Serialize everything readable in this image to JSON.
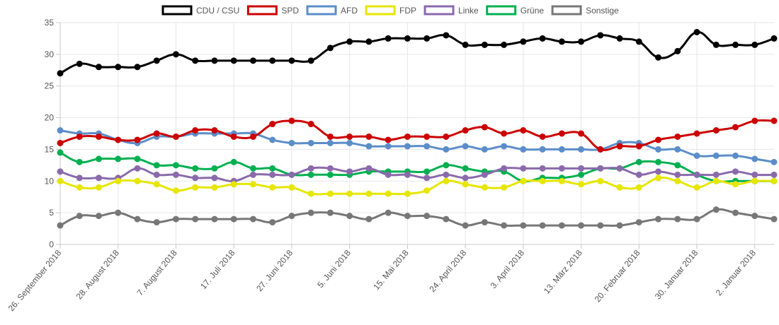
{
  "chart_data": {
    "type": "line",
    "title": "",
    "xlabel": "",
    "ylabel": "",
    "ylim": [
      0,
      35
    ],
    "yticks": [
      0,
      5,
      10,
      15,
      20,
      25,
      30,
      35
    ],
    "grid": true,
    "legend_position": "top-center",
    "x_tick_labels": [
      "26. September 2018",
      "28. August 2018",
      "7. August 2018",
      "17. Juli 2018",
      "27. Juni 2018",
      "5. Juni 2018",
      "15. Mai 2018",
      "24. April 2018",
      "3. April 2018",
      "13. März 2018",
      "20. Februar 2018",
      "30. Januar 2018",
      "2. Januar 2018"
    ],
    "num_points": 38,
    "series": [
      {
        "name": "CDU / CSU",
        "color": "#000000",
        "values": [
          27,
          28.5,
          28,
          28,
          28,
          29,
          30,
          29,
          29,
          29,
          29,
          29,
          29,
          29,
          31,
          32,
          32,
          32.5,
          32.5,
          32.5,
          33,
          31.5,
          31.5,
          31.5,
          32,
          32.5,
          32,
          32,
          33,
          32.5,
          32,
          29.5,
          30.5,
          33.5,
          31.5,
          31.5,
          31.5,
          32.5
        ]
      },
      {
        "name": "SPD",
        "color": "#cc0000",
        "values": [
          16,
          17,
          17,
          16.5,
          16.5,
          17.5,
          17,
          18,
          18,
          17,
          17,
          19,
          19.5,
          19,
          17,
          17,
          17,
          16.5,
          17,
          17,
          17,
          18,
          18.5,
          17.5,
          18,
          17,
          17.5,
          17.5,
          15,
          15.5,
          15.5,
          16.5,
          17,
          17.5,
          18,
          18.5,
          19.5,
          19.5
        ]
      },
      {
        "name": "AFD",
        "color": "#5b8dc9",
        "values": [
          18,
          17.5,
          17.5,
          16.5,
          16,
          17,
          17,
          17.5,
          17.5,
          17.5,
          17.5,
          16.5,
          16,
          16,
          16,
          16,
          15.5,
          15.5,
          15.5,
          15.5,
          15,
          15.5,
          15,
          15.5,
          15,
          15,
          15,
          15,
          15,
          16,
          16,
          15,
          15,
          14,
          14,
          14,
          13.5,
          13
        ]
      },
      {
        "name": "FDP",
        "color": "#e6e600",
        "values": [
          10,
          9,
          9,
          10,
          10,
          9.5,
          8.5,
          9,
          9,
          9.5,
          9.5,
          9,
          9,
          8,
          8,
          8,
          8,
          8,
          8,
          8.5,
          10,
          9.5,
          9,
          9,
          10,
          10,
          10,
          9.5,
          10,
          9,
          9,
          10.5,
          10,
          9,
          10,
          9.5,
          10,
          10
        ]
      },
      {
        "name": "Linke",
        "color": "#8a6aab",
        "values": [
          11.5,
          10.5,
          10.5,
          10.5,
          12,
          11,
          11,
          10.5,
          10.5,
          10,
          11,
          11,
          11,
          12,
          12,
          11.5,
          12,
          11,
          11,
          10.5,
          11,
          10.5,
          11,
          12,
          12,
          12,
          12,
          12,
          12,
          12,
          11,
          11.5,
          11,
          11,
          11,
          11.5,
          11,
          11
        ]
      },
      {
        "name": "Grüne",
        "color": "#00b050",
        "values": [
          14.5,
          13,
          13.5,
          13.5,
          13.5,
          12.5,
          12.5,
          12,
          12,
          13,
          12,
          12,
          11,
          11,
          11,
          11,
          11.5,
          11.5,
          11.5,
          11.5,
          12.5,
          12,
          11.5,
          11.5,
          10,
          10.5,
          10.5,
          11,
          12,
          12,
          13,
          13,
          12.5,
          11,
          10,
          10,
          10,
          10
        ]
      },
      {
        "name": "Sonstige",
        "color": "#777777",
        "values": [
          3,
          4.5,
          4.5,
          5,
          4,
          3.5,
          4,
          4,
          4,
          4,
          4,
          3.5,
          4.5,
          5,
          5,
          4.5,
          4,
          5,
          4.5,
          4.5,
          4,
          3,
          3.5,
          3,
          3,
          3,
          3,
          3,
          3,
          3,
          3.5,
          4,
          4,
          4,
          5.5,
          5,
          4.5,
          4
        ]
      }
    ]
  }
}
